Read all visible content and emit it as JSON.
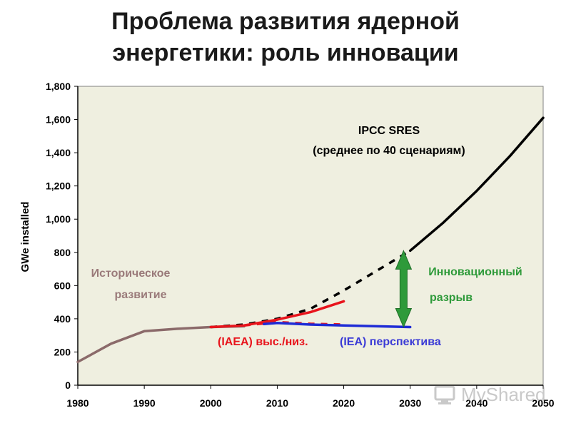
{
  "slide": {
    "title_line1": "Проблема развития ядерной",
    "title_line2": "энергетики: роль инновации"
  },
  "chart_data": {
    "type": "line",
    "ylabel": "GWe installed",
    "xlim": [
      1980,
      2050
    ],
    "ylim": [
      0,
      1800
    ],
    "x_ticks": [
      1980,
      1990,
      2000,
      2010,
      2020,
      2030,
      2040,
      2050
    ],
    "y_ticks": [
      0,
      200,
      400,
      600,
      800,
      1000,
      1200,
      1400,
      1600,
      1800
    ],
    "y_tick_labels": [
      "0",
      "200",
      "400",
      "600",
      "800",
      "1,000",
      "1,200",
      "1,400",
      "1,600",
      "1,800"
    ],
    "grid": false,
    "plot_background": "#efefe0",
    "series": [
      {
        "key": "historical",
        "color": "#8b6a6a",
        "style": "solid",
        "points": [
          [
            1980,
            140
          ],
          [
            1985,
            250
          ],
          [
            1990,
            325
          ],
          [
            1995,
            340
          ],
          [
            2000,
            350
          ],
          [
            2005,
            355
          ]
        ]
      },
      {
        "key": "ipcc_dashed",
        "color": "#000000",
        "style": "dashed",
        "points": [
          [
            2000,
            350
          ],
          [
            2005,
            365
          ],
          [
            2010,
            400
          ],
          [
            2015,
            460
          ],
          [
            2020,
            570
          ],
          [
            2025,
            690
          ],
          [
            2030,
            810
          ]
        ]
      },
      {
        "key": "ipcc_solid",
        "color": "#000000",
        "style": "solid",
        "points": [
          [
            2030,
            810
          ],
          [
            2035,
            980
          ],
          [
            2040,
            1170
          ],
          [
            2045,
            1380
          ],
          [
            2050,
            1610
          ]
        ]
      },
      {
        "key": "iaea_high",
        "color": "#e8141c",
        "style": "solid",
        "points": [
          [
            2000,
            350
          ],
          [
            2005,
            360
          ],
          [
            2010,
            395
          ],
          [
            2015,
            440
          ],
          [
            2020,
            505
          ]
        ]
      },
      {
        "key": "iaea_low",
        "color": "#e8141c",
        "style": "dashed",
        "points": [
          [
            2005,
            360
          ],
          [
            2010,
            380
          ],
          [
            2015,
            370
          ],
          [
            2020,
            365
          ]
        ]
      },
      {
        "key": "iea_outlook",
        "color": "#1e2bd6",
        "style": "solid",
        "points": [
          [
            2008,
            368
          ],
          [
            2010,
            375
          ],
          [
            2015,
            365
          ],
          [
            2020,
            360
          ],
          [
            2030,
            350
          ]
        ]
      }
    ],
    "gap_arrow": {
      "x": 2029,
      "y_top": 810,
      "y_bottom": 350,
      "color": "#2e9a3a"
    },
    "annotations": {
      "ipcc_line1": "IPCC SRES",
      "ipcc_line2": "(среднее по 40 сценариям)",
      "historical_line1": "Историческое",
      "historical_line2": "развитие",
      "innovation_line1": "Инновационный",
      "innovation_line2": "разрыв",
      "iaea": "(IAEA) выс./низ.",
      "iea": "(IEA) перспектива"
    },
    "annotation_colors": {
      "ipcc": "#000000",
      "historical": "#9a7a7a",
      "innovation": "#2e9a3a",
      "iaea": "#e8141c",
      "iea": "#3a3ad6"
    }
  },
  "watermark": {
    "text": "MyShared",
    "icon": "myshared-logo-icon",
    "color": "#8a8a8a"
  }
}
